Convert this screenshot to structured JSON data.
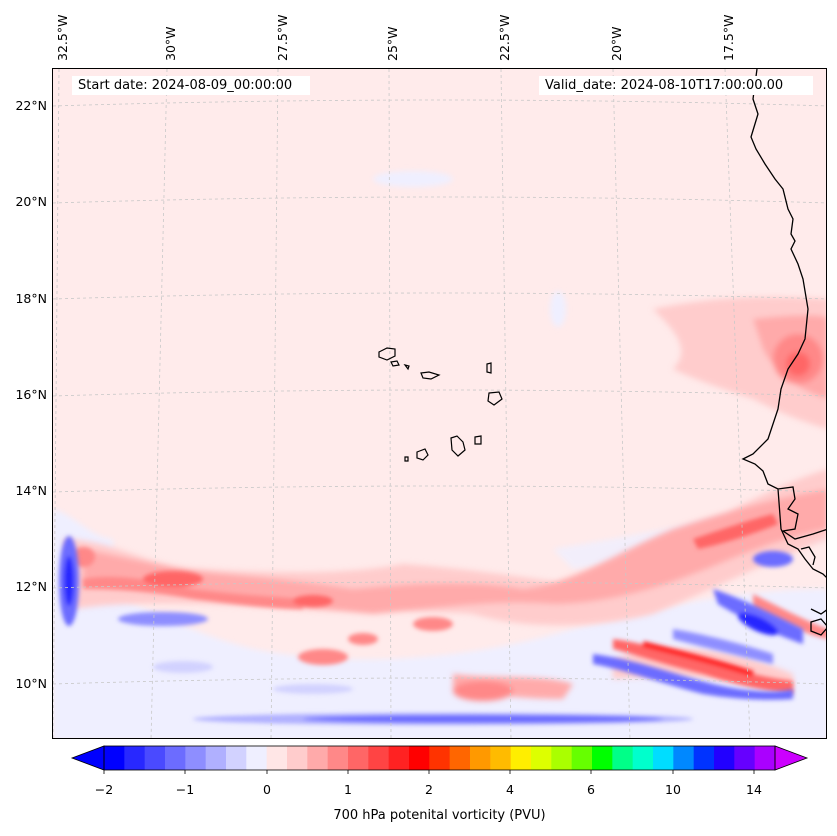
{
  "map": {
    "title_start": "Start date: 2024-08-09_00:00:00",
    "title_valid": "Valid_date: 2024-08-10T17:00:00.00",
    "longitude_labels": [
      "32.5°W",
      "30°W",
      "27.5°W",
      "25°W",
      "22.5°W",
      "20°W",
      "17.5°W"
    ],
    "latitude_labels": [
      "22°N",
      "20°N",
      "18°N",
      "16°N",
      "14°N",
      "12°N",
      "10°N"
    ],
    "background_color": "#ffebeb",
    "coastline_color": "#000000",
    "gridline_color": "#c8c8c8"
  },
  "colorbar": {
    "title": "700 hPa potenital vorticity (PVU)",
    "tick_labels": [
      "−2",
      "−1",
      "0",
      "1",
      "2",
      "4",
      "6",
      "10",
      "14"
    ],
    "colors": [
      "#0000ff",
      "#2828ff",
      "#4a4aff",
      "#6c6cff",
      "#8e8eff",
      "#b0b0ff",
      "#d2d2ff",
      "#efefff",
      "#ffe6e6",
      "#ffcccc",
      "#ffaaaa",
      "#ff8888",
      "#ff6666",
      "#ff4444",
      "#ff2222",
      "#ff0000",
      "#ff3300",
      "#ff6600",
      "#ff9900",
      "#ffbb00",
      "#ffee00",
      "#ddff00",
      "#aaff00",
      "#66ff00",
      "#00ff00",
      "#00ff88",
      "#00ffcc",
      "#00ddff",
      "#0088ff",
      "#0033ff",
      "#2200ff",
      "#6600ff",
      "#aa00ff"
    ],
    "under_color": "#0000ff",
    "over_color": "#cc00ff"
  }
}
